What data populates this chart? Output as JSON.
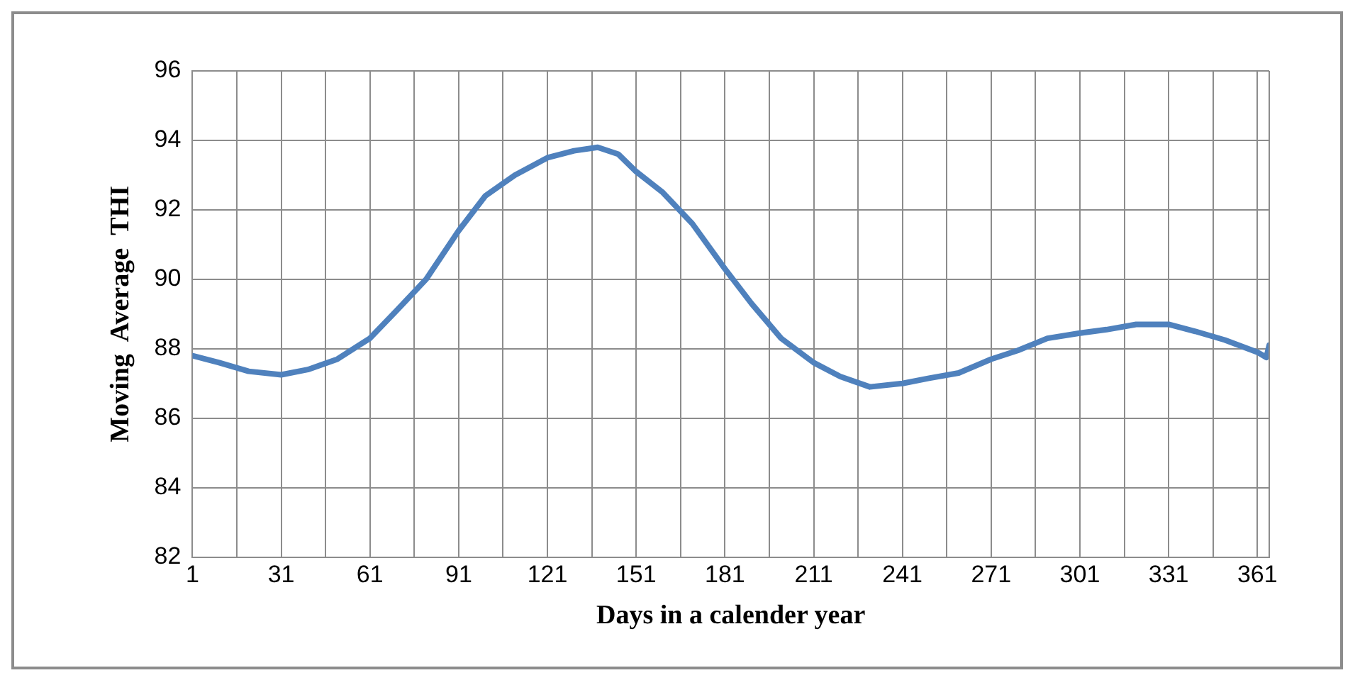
{
  "chart_data": {
    "type": "line",
    "xlabel": "Days in a calender year",
    "ylabel": "Moving  Average  THI",
    "x": [
      1,
      10,
      20,
      31,
      40,
      50,
      61,
      70,
      80,
      91,
      100,
      110,
      121,
      130,
      138,
      145,
      151,
      160,
      170,
      181,
      190,
      200,
      211,
      220,
      230,
      241,
      250,
      260,
      271,
      280,
      290,
      301,
      310,
      320,
      331,
      340,
      350,
      361,
      364,
      365
    ],
    "series": [
      {
        "color": "#4f81bd",
        "values": [
          87.8,
          87.6,
          87.35,
          87.25,
          87.4,
          87.7,
          88.3,
          89.1,
          90.0,
          91.4,
          92.4,
          93.0,
          93.5,
          93.7,
          93.8,
          93.6,
          93.1,
          92.5,
          91.6,
          90.3,
          89.3,
          88.3,
          87.6,
          87.2,
          86.9,
          87.0,
          87.15,
          87.3,
          87.7,
          87.95,
          88.3,
          88.45,
          88.55,
          88.7,
          88.7,
          88.5,
          88.25,
          87.9,
          87.75,
          88.1
        ]
      }
    ],
    "xlim": [
      1,
      365
    ],
    "xticks": [
      1,
      {
        "value": 16,
        "label": null
      },
      31,
      {
        "value": 46,
        "label": null
      },
      61,
      {
        "value": 76,
        "label": null
      },
      91,
      {
        "value": 106,
        "label": null
      },
      121,
      {
        "value": 136,
        "label": null
      },
      151,
      {
        "value": 166,
        "label": null
      },
      181,
      {
        "value": 196,
        "label": null
      },
      211,
      {
        "value": 226,
        "label": null
      },
      241,
      {
        "value": 256,
        "label": null
      },
      271,
      {
        "value": 286,
        "label": null
      },
      301,
      {
        "value": 316,
        "label": null
      },
      331,
      {
        "value": 346,
        "label": null
      },
      361
    ],
    "ylim": [
      82,
      96
    ],
    "yticks": [
      82,
      84,
      86,
      88,
      90,
      92,
      94,
      96
    ],
    "grid": true,
    "legend": false,
    "marker": "none",
    "line_style": "solid"
  }
}
